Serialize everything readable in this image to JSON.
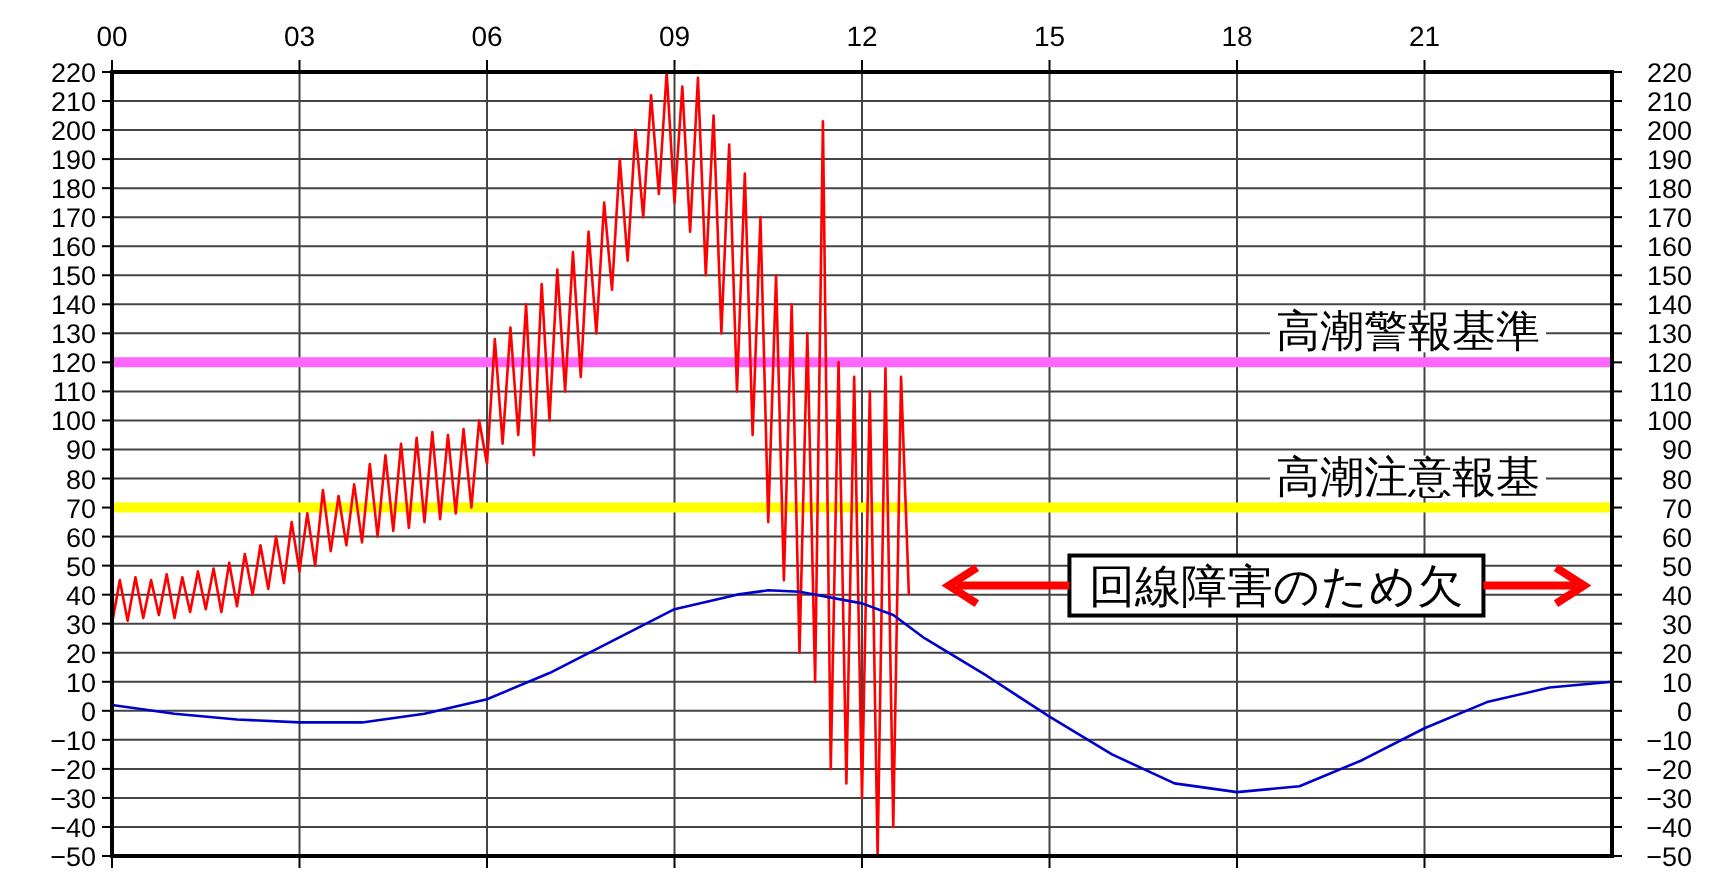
{
  "chart_data": {
    "type": "line",
    "xlim": [
      0,
      24
    ],
    "xticks": [
      {
        "value": 0,
        "label": "00"
      },
      {
        "value": 3,
        "label": "03"
      },
      {
        "value": 6,
        "label": "06"
      },
      {
        "value": 9,
        "label": "09"
      },
      12,
      15,
      18,
      21
    ],
    "ylim": [
      -50,
      220
    ],
    "yticks": [
      -50,
      -40,
      -30,
      -20,
      -10,
      0,
      10,
      20,
      30,
      40,
      50,
      60,
      70,
      80,
      90,
      100,
      110,
      120,
      130,
      140,
      150,
      160,
      170,
      180,
      190,
      200,
      210,
      220
    ],
    "y2lim": [
      -50,
      220
    ],
    "y2ticks": [
      -50,
      -40,
      -30,
      -20,
      -10,
      0,
      10,
      20,
      30,
      40,
      50,
      60,
      70,
      80,
      90,
      100,
      110,
      120,
      130,
      140,
      150,
      160,
      170,
      180,
      190,
      200,
      210,
      220
    ],
    "grid": true,
    "series": [
      {
        "color": "#ff0000",
        "x": [
          0,
          0.125,
          0.25,
          0.375,
          0.5,
          0.625,
          0.75,
          0.875,
          1.0,
          1.125,
          1.25,
          1.375,
          1.5,
          1.625,
          1.75,
          1.875,
          2.0,
          2.125,
          2.25,
          2.375,
          2.5,
          2.625,
          2.75,
          2.875,
          3.0,
          3.125,
          3.25,
          3.375,
          3.5,
          3.625,
          3.75,
          3.875,
          4.0,
          4.125,
          4.25,
          4.375,
          4.5,
          4.625,
          4.75,
          4.875,
          5.0,
          5.125,
          5.25,
          5.375,
          5.5,
          5.625,
          5.75,
          5.875,
          6.0,
          6.125,
          6.25,
          6.375,
          6.5,
          6.625,
          6.75,
          6.875,
          7.0,
          7.125,
          7.25,
          7.375,
          7.5,
          7.625,
          7.75,
          7.875,
          8.0,
          8.125,
          8.25,
          8.375,
          8.5,
          8.625,
          8.75,
          8.875,
          9.0,
          9.125,
          9.25,
          9.375,
          9.5,
          9.625,
          9.75,
          9.875,
          10.0,
          10.125,
          10.25,
          10.375,
          10.5,
          10.625,
          10.75,
          10.875,
          11.0,
          11.125,
          11.25,
          11.375,
          11.5,
          11.625,
          11.75,
          11.875,
          12.0,
          12.125,
          12.25,
          12.375,
          12.5,
          12.625,
          12.75
        ],
        "values": [
          30,
          45,
          31,
          46,
          32,
          45,
          33,
          47,
          32,
          46,
          34,
          48,
          35,
          49,
          34,
          51,
          36,
          54,
          40,
          57,
          42,
          60,
          44,
          65,
          48,
          68,
          50,
          76,
          55,
          74,
          57,
          78,
          58,
          85,
          60,
          88,
          62,
          92,
          63,
          94,
          65,
          96,
          66,
          95,
          68,
          97,
          70,
          100,
          85,
          128,
          92,
          132,
          95,
          140,
          88,
          147,
          100,
          152,
          110,
          158,
          115,
          165,
          130,
          175,
          145,
          190,
          155,
          200,
          170,
          212,
          178,
          220,
          175,
          215,
          165,
          218,
          150,
          205,
          130,
          195,
          110,
          185,
          95,
          170,
          65,
          150,
          45,
          140,
          20,
          130,
          10,
          203,
          -20,
          120,
          -25,
          115,
          -30,
          110,
          -50,
          118,
          -40,
          115,
          40
        ]
      },
      {
        "color": "#0000cc",
        "x": [
          0,
          1,
          2,
          3,
          4,
          5,
          6,
          7,
          8,
          9,
          10,
          10.5,
          11,
          12,
          12.5,
          13,
          14,
          15,
          16,
          17,
          18,
          19,
          20,
          21,
          22,
          23,
          24
        ],
        "values": [
          2,
          -1,
          -3,
          -4,
          -4,
          -1,
          4,
          13,
          24,
          35,
          40,
          41.5,
          41,
          37,
          33,
          25,
          12,
          -2,
          -15,
          -25,
          -28,
          -26,
          -17,
          -6,
          3,
          8,
          10
        ]
      }
    ],
    "ref_lines": [
      {
        "axis": "y",
        "value": 120,
        "label": "高潮警報基準",
        "color": "#ff66ff"
      },
      {
        "axis": "y",
        "value": 70,
        "label": "高潮注意報基",
        "color": "#ffff00"
      }
    ],
    "annotations": [
      "回線障害のため欠"
    ]
  }
}
